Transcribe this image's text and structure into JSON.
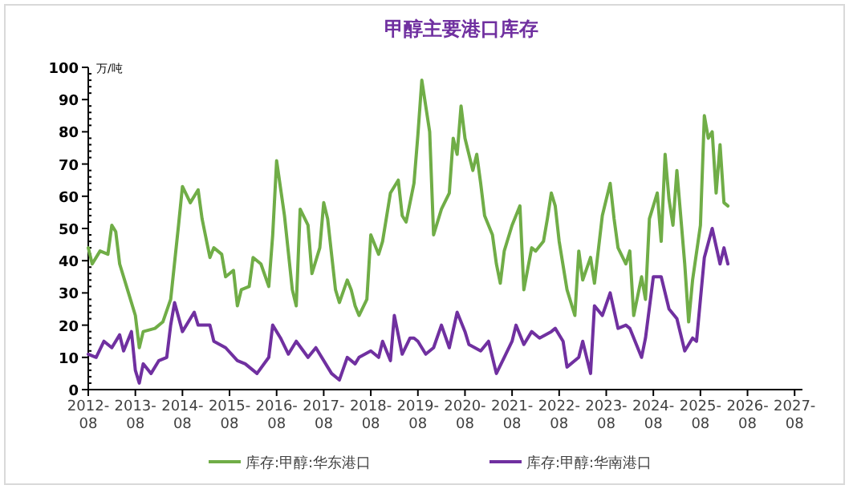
{
  "chart_data": {
    "type": "line",
    "title": "甲醇主要港口库存",
    "ylabel": "万/吨",
    "legend": "bottom",
    "xlim": [
      "2012-08",
      "2027-10"
    ],
    "xticks": [
      "2012-08",
      "2013-08",
      "2014-08",
      "2015-08",
      "2016-08",
      "2017-08",
      "2018-08",
      "2019-08",
      "2020-08",
      "2021-08",
      "2022-08",
      "2023-08",
      "2024-08",
      "2025-08",
      "2026-08",
      "2027-08"
    ],
    "ylim": [
      0,
      100
    ],
    "yticks": [
      0,
      10,
      20,
      30,
      40,
      50,
      60,
      70,
      80,
      90,
      100
    ],
    "series": [
      {
        "name": "库存:甲醇:华东港口",
        "color": "#70ad47",
        "x": [
          "2012-08",
          "2012-09",
          "2012-11",
          "2013-01",
          "2013-02",
          "2013-03",
          "2013-04",
          "2013-06",
          "2013-08",
          "2013-09",
          "2013-10",
          "2014-01",
          "2014-03",
          "2014-05",
          "2014-07",
          "2014-08",
          "2014-10",
          "2014-12",
          "2015-01",
          "2015-03",
          "2015-04",
          "2015-06",
          "2015-07",
          "2015-09",
          "2015-10",
          "2015-11",
          "2016-01",
          "2016-02",
          "2016-04",
          "2016-06",
          "2016-07",
          "2016-08",
          "2016-10",
          "2016-12",
          "2017-01",
          "2017-02",
          "2017-04",
          "2017-05",
          "2017-07",
          "2017-08",
          "2017-09",
          "2017-11",
          "2017-12",
          "2018-02",
          "2018-03",
          "2018-04",
          "2018-05",
          "2018-07",
          "2018-08",
          "2018-10",
          "2018-11",
          "2019-01",
          "2019-03",
          "2019-04",
          "2019-05",
          "2019-07",
          "2019-08",
          "2019-09",
          "2019-10",
          "2019-11",
          "2019-12",
          "2020-02",
          "2020-04",
          "2020-05",
          "2020-06",
          "2020-07",
          "2020-08",
          "2020-10",
          "2020-11",
          "2020-12",
          "2021-01",
          "2021-03",
          "2021-04",
          "2021-05",
          "2021-06",
          "2021-08",
          "2021-10",
          "2021-11",
          "2022-01",
          "2022-02",
          "2022-04",
          "2022-05",
          "2022-06",
          "2022-07",
          "2022-08",
          "2022-10",
          "2022-12",
          "2023-01",
          "2023-02",
          "2023-04",
          "2023-05",
          "2023-07",
          "2023-09",
          "2023-10",
          "2023-11",
          "2024-01",
          "2024-02",
          "2024-03",
          "2024-05",
          "2024-06",
          "2024-07",
          "2024-09",
          "2024-10",
          "2024-11",
          "2024-12",
          "2025-01",
          "2025-02",
          "2025-04",
          "2025-05",
          "2025-06",
          "2025-08",
          "2025-09",
          "2025-10",
          "2025-11",
          "2025-12",
          "2026-01",
          "2026-02",
          "2026-03"
        ],
        "values": [
          44,
          39,
          43,
          42,
          51,
          49,
          39,
          31,
          23,
          13,
          18,
          19,
          21,
          28,
          51,
          63,
          58,
          62,
          53,
          41,
          44,
          42,
          35,
          37,
          26,
          31,
          32,
          41,
          39,
          32,
          48,
          71,
          54,
          31,
          26,
          56,
          51,
          36,
          44,
          58,
          53,
          31,
          27,
          34,
          31,
          26,
          23,
          28,
          48,
          42,
          46,
          61,
          65,
          54,
          52,
          64,
          79,
          96,
          88,
          80,
          48,
          56,
          61,
          78,
          73,
          88,
          78,
          68,
          73,
          64,
          54,
          48,
          39,
          33,
          43,
          51,
          57,
          31,
          44,
          43,
          46,
          53,
          61,
          57,
          46,
          31,
          23,
          43,
          34,
          41,
          33,
          54,
          64,
          53,
          44,
          39,
          43,
          23,
          35,
          28,
          53,
          61,
          46,
          73,
          59,
          51,
          68,
          39,
          21,
          34,
          51,
          85,
          78,
          80,
          61,
          76,
          58,
          57
        ]
      },
      {
        "name": "库存:甲醇:华南港口",
        "color": "#7030a0",
        "x": [
          "2012-08",
          "2012-10",
          "2012-12",
          "2013-02",
          "2013-04",
          "2013-05",
          "2013-07",
          "2013-08",
          "2013-09",
          "2013-10",
          "2013-12",
          "2014-02",
          "2014-04",
          "2014-05",
          "2014-06",
          "2014-08",
          "2014-11",
          "2014-12",
          "2015-03",
          "2015-04",
          "2015-07",
          "2015-10",
          "2015-12",
          "2016-03",
          "2016-06",
          "2016-07",
          "2016-09",
          "2016-11",
          "2017-01",
          "2017-04",
          "2017-06",
          "2017-09",
          "2017-10",
          "2017-12",
          "2018-02",
          "2018-04",
          "2018-05",
          "2018-08",
          "2018-10",
          "2018-11",
          "2019-01",
          "2019-02",
          "2019-04",
          "2019-06",
          "2019-07",
          "2019-08",
          "2019-10",
          "2019-12",
          "2020-02",
          "2020-04",
          "2020-06",
          "2020-08",
          "2020-09",
          "2020-12",
          "2021-02",
          "2021-03",
          "2021-04",
          "2021-06",
          "2021-08",
          "2021-09",
          "2021-11",
          "2022-01",
          "2022-03",
          "2022-06",
          "2022-07",
          "2022-09",
          "2022-10",
          "2023-01",
          "2023-02",
          "2023-04",
          "2023-05",
          "2023-07",
          "2023-09",
          "2023-11",
          "2024-01",
          "2024-02",
          "2024-05",
          "2024-06",
          "2024-08",
          "2024-10",
          "2024-12",
          "2025-02",
          "2025-04",
          "2025-06",
          "2025-07",
          "2025-09",
          "2025-11",
          "2026-01",
          "2026-02",
          "2026-03"
        ],
        "values": [
          11,
          10,
          15,
          13,
          17,
          12,
          18,
          6,
          2,
          8,
          5,
          9,
          10,
          20,
          27,
          18,
          24,
          20,
          20,
          15,
          13,
          9,
          8,
          5,
          10,
          20,
          16,
          11,
          15,
          10,
          13,
          7,
          5,
          3,
          10,
          8,
          10,
          12,
          10,
          15,
          9,
          23,
          11,
          16,
          16,
          15,
          11,
          13,
          20,
          13,
          24,
          18,
          14,
          12,
          15,
          10,
          5,
          10,
          15,
          20,
          14,
          18,
          16,
          18,
          19,
          15,
          7,
          10,
          15,
          5,
          26,
          23,
          30,
          19,
          20,
          19,
          10,
          16,
          35,
          35,
          25,
          22,
          12,
          16,
          15,
          41,
          50,
          39,
          44,
          39
        ]
      }
    ]
  }
}
